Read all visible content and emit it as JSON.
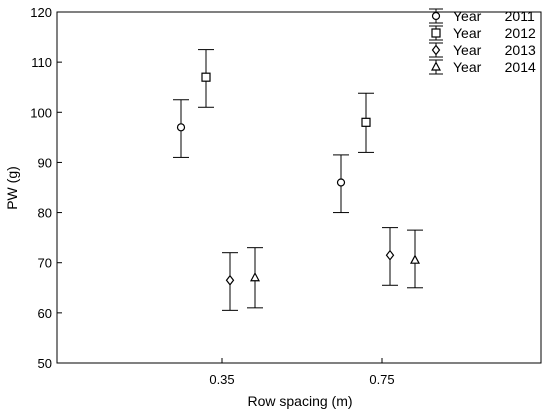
{
  "chart_data": {
    "type": "scatter",
    "xlabel": "Row spacing (m)",
    "ylabel": "PW (g)",
    "categories": [
      "0.35",
      "0.75"
    ],
    "ylim": [
      50,
      120
    ],
    "yticks": [
      50,
      60,
      70,
      80,
      90,
      100,
      110,
      120
    ],
    "grid": false,
    "legend_position": "top-right",
    "series": [
      {
        "name": "Year      2011",
        "marker": "circle",
        "values": [
          97,
          86
        ],
        "lower": [
          91,
          80
        ],
        "upper": [
          102.5,
          91.5
        ]
      },
      {
        "name": "Year      2012",
        "marker": "square",
        "values": [
          107,
          98
        ],
        "lower": [
          101,
          92
        ],
        "upper": [
          112.5,
          103.8
        ]
      },
      {
        "name": "Year      2013",
        "marker": "diamond",
        "values": [
          66.5,
          71.5
        ],
        "lower": [
          60.5,
          65.5
        ],
        "upper": [
          72,
          77
        ]
      },
      {
        "name": "Year      2014",
        "marker": "triangle",
        "values": [
          67,
          70.5
        ],
        "lower": [
          61,
          65
        ],
        "upper": [
          73,
          76.5
        ]
      }
    ]
  }
}
